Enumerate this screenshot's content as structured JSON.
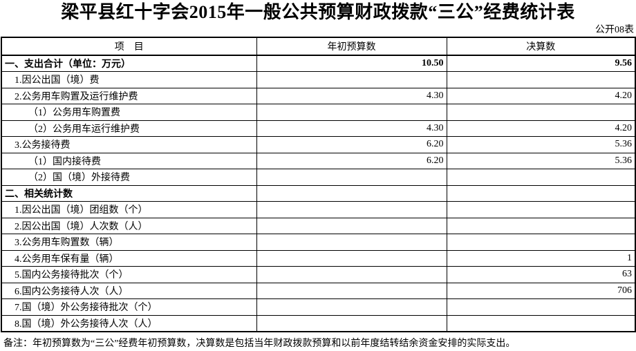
{
  "page": {
    "title": "梁平县红十字会2015年一般公共预算财政拨款“三公”经费统计表",
    "sheet_label": "公开08表",
    "note": "备注：年初预算数为“三公”经费年初预算数，决算数是包括当年财政拨款预算和以前年度结转结余资金安排的实际支出。"
  },
  "colors": {
    "text": "#000000",
    "border": "#000000",
    "background": "#ffffff"
  },
  "table": {
    "columns": [
      {
        "key": "item",
        "label": "项　目"
      },
      {
        "key": "budget",
        "label": "年初预算数"
      },
      {
        "key": "final",
        "label": "决算数"
      }
    ],
    "rows": [
      {
        "item": "一、支出合计（单位：万元）",
        "budget": "10.50",
        "final": "9.56",
        "level": 1,
        "bold": true
      },
      {
        "item": "1.因公出国（境）费",
        "budget": "",
        "final": "",
        "level": 2,
        "bold": false
      },
      {
        "item": "2.公务用车购置及运行维护费",
        "budget": "4.30",
        "final": "4.20",
        "level": 2,
        "bold": false
      },
      {
        "item": "（1）公务用车购置费",
        "budget": "",
        "final": "",
        "level": 3,
        "bold": false
      },
      {
        "item": "（2）公务用车运行维护费",
        "budget": "4.30",
        "final": "4.20",
        "level": 3,
        "bold": false
      },
      {
        "item": "3.公务接待费",
        "budget": "6.20",
        "final": "5.36",
        "level": 2,
        "bold": false
      },
      {
        "item": "（1）国内接待费",
        "budget": "6.20",
        "final": "5.36",
        "level": 3,
        "bold": false
      },
      {
        "item": "（2）国（境）外接待费",
        "budget": "",
        "final": "",
        "level": 3,
        "bold": false
      },
      {
        "item": "二、相关统计数",
        "budget": "",
        "final": "",
        "level": 1,
        "bold": true
      },
      {
        "item": "1.因公出国（境）团组数（个）",
        "budget": "",
        "final": "",
        "level": 2,
        "bold": false
      },
      {
        "item": "2.因公出国（境）人次数（人）",
        "budget": "",
        "final": "",
        "level": 2,
        "bold": false
      },
      {
        "item": "3.公务用车购置数（辆）",
        "budget": "",
        "final": "",
        "level": 2,
        "bold": false
      },
      {
        "item": "4.公务用车保有量（辆）",
        "budget": "",
        "final": "1",
        "level": 2,
        "bold": false
      },
      {
        "item": "5.国内公务接待批次（个）",
        "budget": "",
        "final": "63",
        "level": 2,
        "bold": false
      },
      {
        "item": "6.国内公务接待人次（人）",
        "budget": "",
        "final": "706",
        "level": 2,
        "bold": false
      },
      {
        "item": "7.国（境）外公务接待批次（个）",
        "budget": "",
        "final": "",
        "level": 2,
        "bold": false
      },
      {
        "item": "8.国（境）外公务接待人次（人）",
        "budget": "",
        "final": "",
        "level": 2,
        "bold": false
      }
    ]
  }
}
